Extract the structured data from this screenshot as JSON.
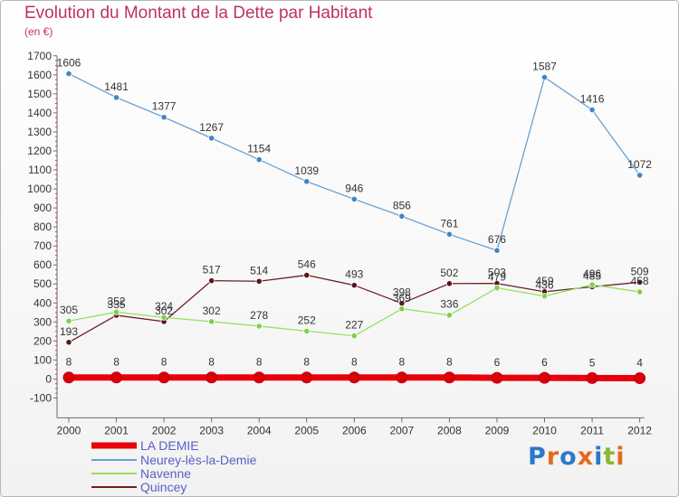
{
  "chart_data": {
    "type": "line",
    "title": "Evolution du Montant de la Dette par Habitant",
    "subtitle": "(en €)",
    "xlabel": "",
    "ylabel": "",
    "x": [
      "2000",
      "2001",
      "2002",
      "2003",
      "2004",
      "2005",
      "2006",
      "2007",
      "2008",
      "2009",
      "2010",
      "2011",
      "2012"
    ],
    "y_ticks": [
      -100,
      0,
      100,
      200,
      300,
      400,
      500,
      600,
      700,
      800,
      900,
      1000,
      1100,
      1200,
      1300,
      1400,
      1500,
      1600,
      1700
    ],
    "ylim": [
      -100,
      1700
    ],
    "grid": false,
    "legend_position": "bottom-left",
    "series": [
      {
        "name": "LA DEMIE",
        "color": "#e8000b",
        "values": [
          8,
          8,
          8,
          8,
          8,
          8,
          8,
          8,
          8,
          6,
          6,
          5,
          4
        ]
      },
      {
        "name": "Neurey-lès-la-Demie",
        "color": "#6aa1d4",
        "values": [
          1606,
          1481,
          1377,
          1267,
          1154,
          1039,
          946,
          856,
          761,
          676,
          1587,
          1416,
          1072
        ]
      },
      {
        "name": "Navenne",
        "color": "#97e05f",
        "values": [
          305,
          352,
          324,
          302,
          278,
          252,
          227,
          369,
          336,
          479,
          436,
          496,
          458
        ]
      },
      {
        "name": "Quincey",
        "color": "#6e1d24",
        "values": [
          193,
          335,
          302,
          517,
          514,
          546,
          493,
          398,
          502,
          503,
          459,
          485,
          509
        ]
      }
    ],
    "data_labels": [
      [
        "8",
        "8",
        "8",
        "8",
        "8",
        "8",
        "8",
        "8",
        "8",
        "6",
        "6",
        "5",
        "4"
      ],
      [
        "1606",
        "1481",
        "1377",
        "1267",
        "1154",
        "1039",
        "946",
        "856",
        "761",
        "676",
        "1587",
        "1416",
        "1072"
      ],
      [
        "305",
        "352",
        "324",
        "302",
        "278",
        "252",
        "227",
        "369",
        "336",
        "479",
        "436",
        "496",
        "458"
      ],
      [
        "193",
        "335",
        "302",
        "517",
        "514",
        "546",
        "493",
        "398",
        "502",
        "503",
        "459",
        "485",
        "509"
      ]
    ]
  },
  "logo": {
    "text": "Proxiti",
    "letters": [
      "P",
      "r",
      "o",
      "x",
      "i",
      "t",
      "i"
    ],
    "colors": [
      "#2c78c6",
      "#e46c1b",
      "#2c78c6",
      "#e46c1b",
      "#2c78c6",
      "#88b92b",
      "#e46c1b"
    ]
  }
}
